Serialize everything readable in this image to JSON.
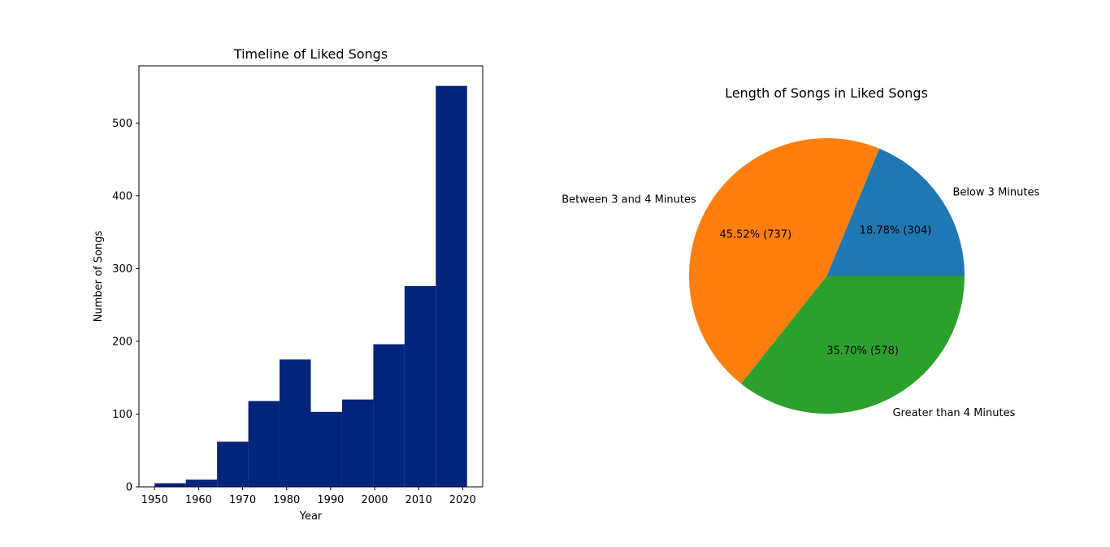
{
  "chart_data": [
    {
      "type": "bar",
      "title": "Timeline of Liked Songs",
      "xlabel": "Year",
      "ylabel": "Number of Songs",
      "bin_edges": [
        1950,
        1957.1,
        1964.2,
        1971.3,
        1978.4,
        1985.5,
        1992.6,
        1999.7,
        2006.8,
        2013.9,
        2021
      ],
      "values": [
        5,
        10,
        62,
        118,
        175,
        103,
        120,
        196,
        276,
        551
      ],
      "xlim": [
        1946.45,
        2024.55
      ],
      "ylim": [
        0,
        578.55
      ],
      "xticks": [
        1950,
        1960,
        1970,
        1980,
        1990,
        2000,
        2010,
        2020
      ],
      "yticks": [
        0,
        100,
        200,
        300,
        400,
        500
      ],
      "color": "#02247a",
      "grid": false
    },
    {
      "type": "pie",
      "title": "Length of Songs in Liked Songs",
      "slices": [
        {
          "label": "Below 3 Minutes",
          "value": 304,
          "pct_label": "18.78%  (304)",
          "color": "#1f77b4"
        },
        {
          "label": "Between 3 and 4 Minutes",
          "value": 737,
          "pct_label": "45.52%  (737)",
          "color": "#ff7f0e"
        },
        {
          "label": "Greater than 4 Minutes",
          "value": 578,
          "pct_label": "35.70%  (578)",
          "color": "#2ca02c"
        }
      ]
    }
  ]
}
